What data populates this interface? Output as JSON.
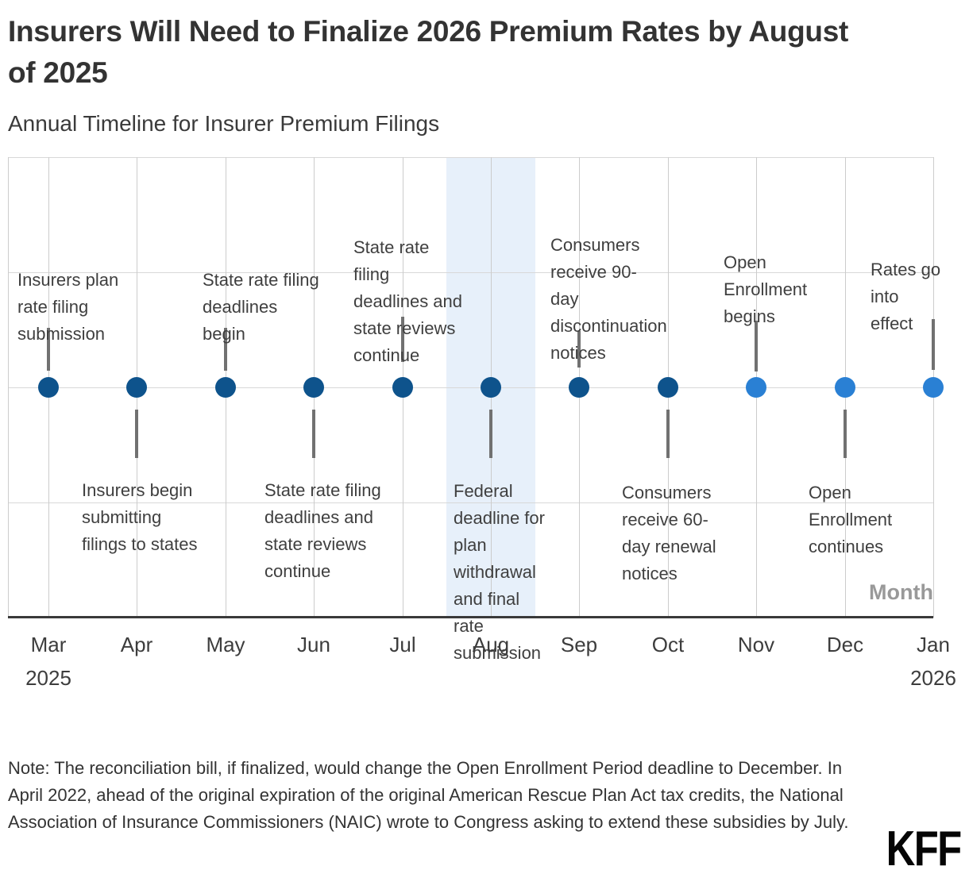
{
  "header": {
    "title_full": "Insurers Will Need to Finalize 2026 Premium Rates by August of 2025",
    "title_lines": [
      "Insurers Will Need to Finalize 2026 Premium Rates by August",
      "of 2025"
    ],
    "subtitle": "Annual Timeline for Insurer Premium Filings"
  },
  "chart_data": {
    "type": "timeline",
    "x_axis_title": "Month",
    "x_range": [
      "Mar 2025",
      "Jan 2026"
    ],
    "grid": true,
    "colors": {
      "dot_dark": "#0E538C",
      "dot_light": "#2A80D4",
      "highlight_band": "#E7F0FA",
      "gridline": "#CCCCCC",
      "axis_line": "#3A3A3A",
      "stem": "#717171",
      "annotation_text": "#3F3F3F"
    },
    "highlight_band": {
      "month": "Aug",
      "color": "#E7F0FA"
    },
    "events": [
      {
        "month": "Mar",
        "year": "2025",
        "side": "above",
        "dot": "dark",
        "label": "Insurers plan rate filing submission",
        "lines": [
          "Insurers plan",
          "rate filing",
          "submission"
        ]
      },
      {
        "month": "Apr",
        "side": "below",
        "dot": "dark",
        "label": "Insurers begin submitting filings to states",
        "lines": [
          "Insurers begin",
          "submitting",
          "filings to states"
        ]
      },
      {
        "month": "May",
        "side": "above",
        "dot": "dark",
        "label": "State rate filing deadlines begin",
        "lines": [
          "State rate filing",
          "deadlines",
          "begin"
        ]
      },
      {
        "month": "Jun",
        "side": "below",
        "dot": "dark",
        "label": "State rate filing deadlines and state reviews continue",
        "lines": [
          "State rate filing",
          "deadlines and",
          "state reviews",
          "continue"
        ]
      },
      {
        "month": "Jul",
        "side": "above",
        "dot": "dark",
        "label": "State rate filing deadlines and state reviews continue",
        "lines": [
          "State rate",
          "filing",
          "deadlines and",
          "state reviews",
          "continue"
        ]
      },
      {
        "month": "Aug",
        "side": "below",
        "dot": "dark",
        "highlighted": true,
        "label": "Federal deadline for plan withdrawal and final rate submission",
        "lines": [
          "Federal",
          "deadline for",
          "plan",
          "withdrawal",
          "and final",
          "rate",
          "submission"
        ]
      },
      {
        "month": "Sep",
        "side": "above",
        "dot": "dark",
        "label": "Consumers receive 90-day discontinuation notices",
        "lines": [
          "Consumers",
          "receive 90-",
          "day",
          "discontinuation",
          "notices"
        ]
      },
      {
        "month": "Oct",
        "side": "below",
        "dot": "dark",
        "label": "Consumers receive 60-day renewal notices",
        "lines": [
          "Consumers",
          "receive 60-",
          "day renewal",
          "notices"
        ]
      },
      {
        "month": "Nov",
        "side": "above",
        "dot": "light",
        "label": "Open Enrollment begins",
        "lines": [
          "Open",
          "Enrollment",
          "begins"
        ]
      },
      {
        "month": "Dec",
        "side": "below",
        "dot": "light",
        "label": "Open Enrollment continues",
        "lines": [
          "Open",
          "Enrollment",
          "continues"
        ]
      },
      {
        "month": "Jan",
        "year": "2026",
        "side": "above",
        "dot": "light",
        "label": "Rates go into effect",
        "lines": [
          "Rates go",
          "into",
          "effect"
        ]
      }
    ]
  },
  "note": {
    "text": "Note: The reconciliation bill, if finalized, would change the Open Enrollment Period deadline to December. In April 2022, ahead of the original expiration of the original American Rescue Plan Act tax credits, the National Association of Insurance Commissioners (NAIC) wrote to Congress asking to extend these subsidies by July."
  },
  "logo": {
    "text": "KFF"
  }
}
